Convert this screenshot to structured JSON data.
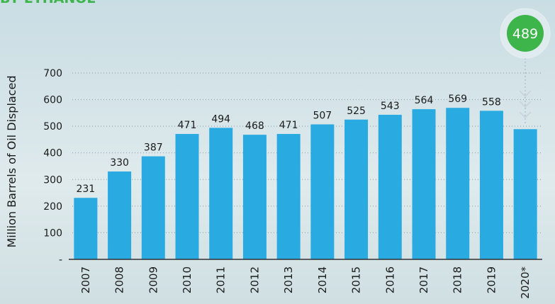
{
  "chart_data": {
    "type": "bar",
    "title": "BY ETHANOL",
    "y_label": "Million Barrels of Oil Displaced",
    "categories": [
      "2007",
      "2008",
      "2009",
      "2010",
      "2011",
      "2012",
      "2013",
      "2014",
      "2015",
      "2016",
      "2017",
      "2018",
      "2019",
      "2020*"
    ],
    "values": [
      231,
      330,
      387,
      471,
      494,
      468,
      471,
      507,
      525,
      543,
      564,
      569,
      558,
      489
    ],
    "color": "#29abe2",
    "ylim": [
      0,
      700
    ],
    "yticks": [
      {
        "value": 0,
        "label": "-"
      },
      100,
      200,
      300,
      400,
      500,
      600,
      700
    ],
    "grid": true,
    "highlight_index": 13
  }
}
